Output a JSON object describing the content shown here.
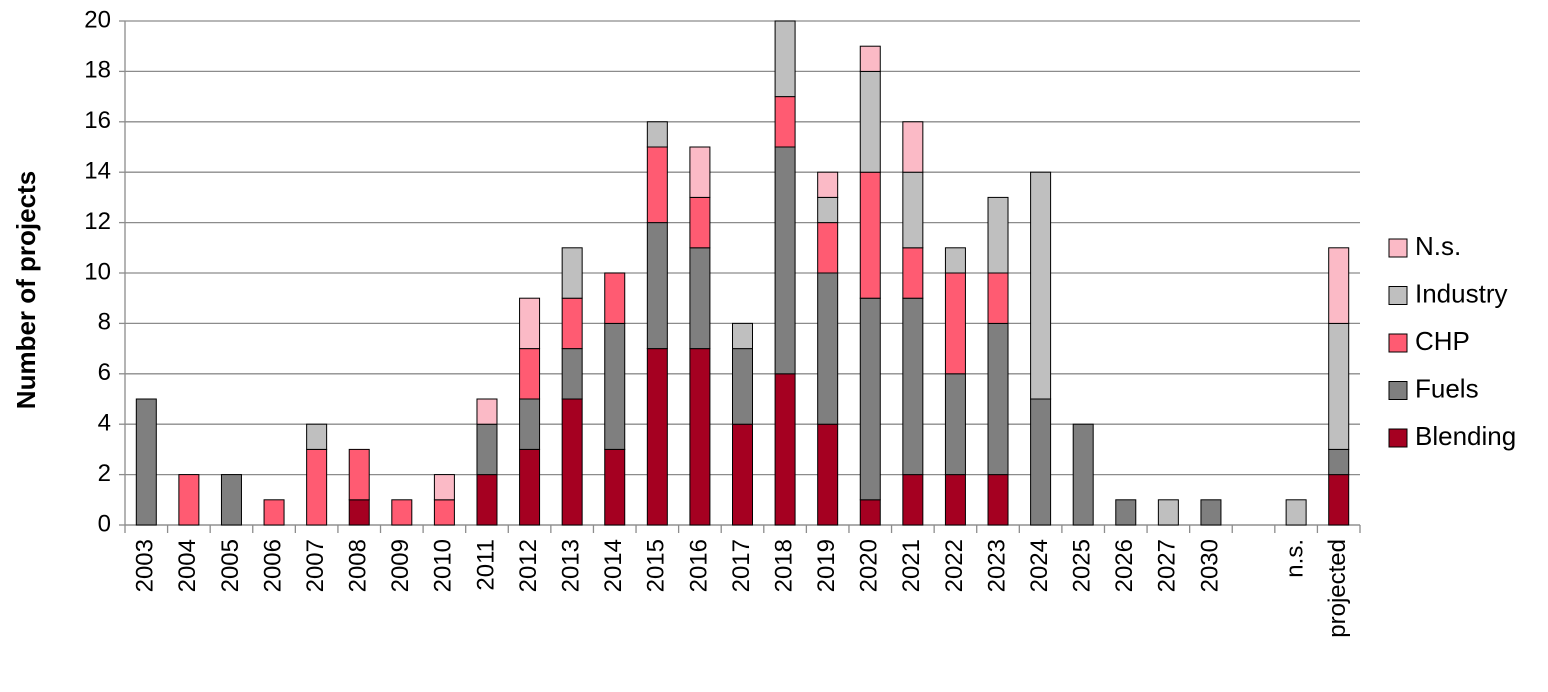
{
  "chart_data": {
    "type": "stacked-bar",
    "y_label": "Number of projects",
    "categories": [
      "2003",
      "2004",
      "2005",
      "2006",
      "2007",
      "2008",
      "2009",
      "2010",
      "2011",
      "2012",
      "2013",
      "2014",
      "2015",
      "2016",
      "2017",
      "2018",
      "2019",
      "2020",
      "2021",
      "2022",
      "2023",
      "2024",
      "2025",
      "2026",
      "2027",
      "2030",
      null,
      "n.s.",
      "projected"
    ],
    "series": [
      {
        "name": "Blending",
        "color": "#a50021",
        "values": [
          0,
          0,
          0,
          0,
          0,
          1,
          0,
          0,
          2,
          3,
          5,
          3,
          7,
          7,
          4,
          6,
          4,
          1,
          2,
          2,
          2,
          0,
          0,
          0,
          0,
          0,
          null,
          0,
          2
        ]
      },
      {
        "name": "Fuels",
        "color": "#7f7f7f",
        "values": [
          5,
          0,
          2,
          0,
          0,
          0,
          0,
          0,
          2,
          2,
          2,
          5,
          5,
          4,
          3,
          9,
          6,
          8,
          7,
          4,
          6,
          5,
          4,
          1,
          0,
          1,
          null,
          0,
          1
        ]
      },
      {
        "name": "CHP",
        "color": "#ff5b72",
        "values": [
          0,
          2,
          0,
          1,
          3,
          2,
          1,
          1,
          0,
          2,
          2,
          2,
          3,
          2,
          0,
          2,
          2,
          5,
          2,
          4,
          2,
          0,
          0,
          0,
          0,
          0,
          null,
          0,
          0
        ]
      },
      {
        "name": "Industry",
        "color": "#bfbfbf",
        "values": [
          0,
          0,
          0,
          0,
          1,
          0,
          0,
          0,
          0,
          0,
          2,
          0,
          1,
          0,
          1,
          3,
          1,
          4,
          3,
          1,
          3,
          9,
          0,
          0,
          1,
          0,
          null,
          1,
          5
        ]
      },
      {
        "name": "N.s.",
        "color": "#fbbac6",
        "values": [
          0,
          0,
          0,
          0,
          0,
          0,
          0,
          1,
          1,
          2,
          0,
          0,
          0,
          2,
          0,
          0,
          1,
          1,
          2,
          0,
          0,
          0,
          0,
          0,
          0,
          0,
          null,
          0,
          3
        ]
      }
    ],
    "ylim": [
      0,
      20
    ],
    "yticks": [
      0,
      2,
      4,
      6,
      8,
      10,
      12,
      14,
      16,
      18,
      20
    ],
    "grid": true,
    "legend": "right"
  }
}
